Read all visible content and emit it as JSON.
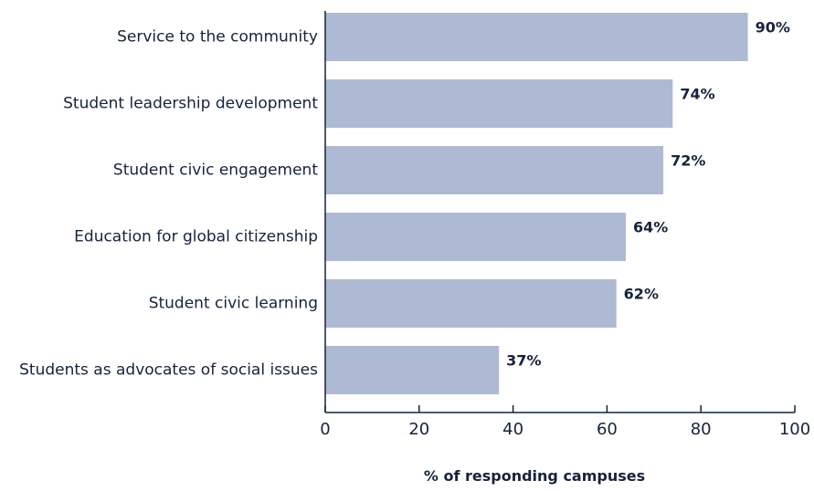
{
  "chart_data": {
    "type": "bar",
    "orientation": "horizontal",
    "categories": [
      "Service to the community",
      "Student leadership development",
      "Student civic engagement",
      "Education for global citizenship",
      "Student civic learning",
      "Students as advocates of social issues"
    ],
    "values": [
      90,
      74,
      72,
      64,
      62,
      37
    ],
    "value_labels": [
      "90%",
      "74%",
      "72%",
      "64%",
      "62%",
      "37%"
    ],
    "xlabel": "% of responding campuses",
    "ylabel": "",
    "xlim": [
      0,
      100
    ],
    "xticks": [
      0,
      20,
      40,
      60,
      80,
      100
    ],
    "grid": false,
    "bar_color": "#aebad3",
    "text_color": "#16233b",
    "axis_color": "#16233b"
  }
}
